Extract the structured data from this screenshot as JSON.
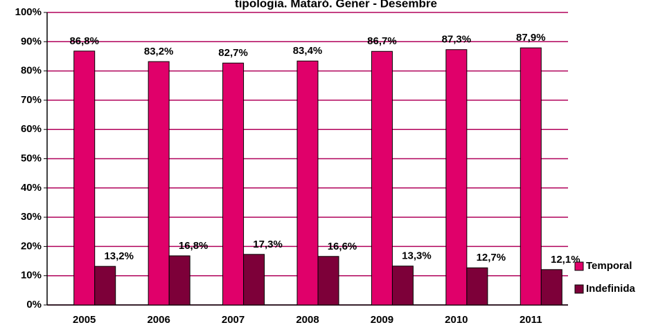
{
  "chart_data": {
    "type": "bar",
    "title": "tipologia. Mataró. Gener - Desembre",
    "categories": [
      "2005",
      "2006",
      "2007",
      "2008",
      "2009",
      "2010",
      "2011"
    ],
    "series": [
      {
        "name": "Temporal",
        "color": "#e0006a",
        "values": [
          86.8,
          83.2,
          82.7,
          83.4,
          86.7,
          87.3,
          87.9
        ],
        "value_labels": [
          "86,8%",
          "83,2%",
          "82,7%",
          "83,4%",
          "86,7%",
          "87,3%",
          "87,9%"
        ]
      },
      {
        "name": "Indefinida",
        "color": "#7d0039",
        "values": [
          13.2,
          16.8,
          17.3,
          16.6,
          13.3,
          12.7,
          12.1
        ],
        "value_labels": [
          "13,2%",
          "16,8%",
          "17,3%",
          "16,6%",
          "13,3%",
          "12,7%",
          "12,1%"
        ]
      }
    ],
    "ylim": [
      0,
      100
    ],
    "yticks": [
      {
        "value": 0,
        "label": "0%"
      },
      {
        "value": 10,
        "label": "10%"
      },
      {
        "value": 20,
        "label": "20%"
      },
      {
        "value": 30,
        "label": "30%"
      },
      {
        "value": 40,
        "label": "40%"
      },
      {
        "value": 50,
        "label": "50%"
      },
      {
        "value": 60,
        "label": "60%"
      },
      {
        "value": 70,
        "label": "70%"
      },
      {
        "value": 80,
        "label": "80%"
      },
      {
        "value": 90,
        "label": "90%"
      },
      {
        "value": 100,
        "label": "100%"
      }
    ],
    "grid": true,
    "legend": "right"
  }
}
